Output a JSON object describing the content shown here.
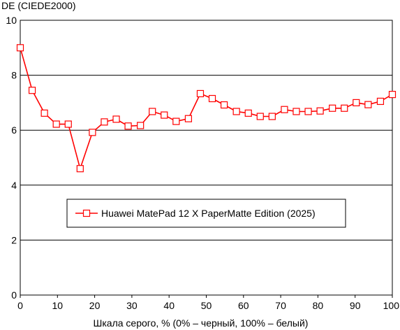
{
  "chart_data": {
    "type": "line",
    "ylabel": "DE (CIEDE2000)",
    "xlabel": "Шкала серого, % (0% – черный, 100% – белый)",
    "xlim": [
      0,
      100
    ],
    "ylim": [
      0,
      10
    ],
    "xticks": [
      "0",
      "10",
      "20",
      "30",
      "40",
      "50",
      "60",
      "70",
      "80",
      "90",
      "100"
    ],
    "yticks": [
      "0",
      "2",
      "4",
      "6",
      "8",
      "10"
    ],
    "grid": "horizontal",
    "legend_position": "center",
    "series": [
      {
        "name": "Huawei MatePad 12 X PaperMatte Edition (2025)",
        "color": "#ff0000",
        "marker": "square",
        "x": [
          0,
          3.2,
          6.5,
          9.7,
          12.9,
          16.1,
          19.4,
          22.6,
          25.8,
          29,
          32.3,
          35.5,
          38.7,
          41.9,
          45.2,
          48.4,
          51.6,
          54.8,
          58.1,
          61.3,
          64.5,
          67.7,
          71,
          74.2,
          77.4,
          80.6,
          83.9,
          87.1,
          90.3,
          93.5,
          96.8,
          100
        ],
        "y": [
          9.0,
          7.45,
          6.62,
          6.22,
          6.22,
          4.6,
          5.92,
          6.3,
          6.4,
          6.15,
          6.17,
          6.68,
          6.55,
          6.32,
          6.42,
          7.33,
          7.15,
          6.92,
          6.68,
          6.62,
          6.5,
          6.5,
          6.75,
          6.68,
          6.68,
          6.7,
          6.8,
          6.8,
          7.0,
          6.93,
          7.05,
          7.3
        ]
      }
    ]
  }
}
